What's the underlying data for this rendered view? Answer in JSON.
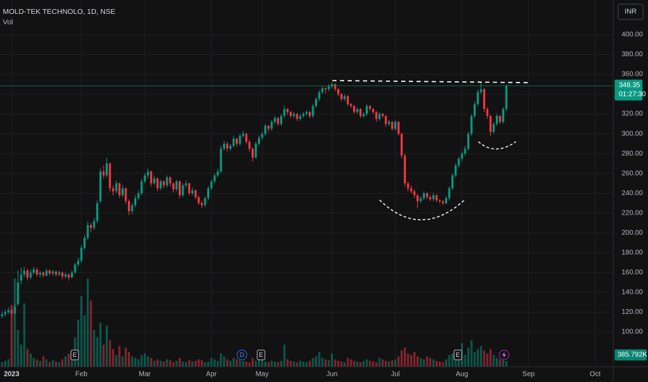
{
  "chart_data": {
    "type": "candlestick",
    "title": "MOLD-TEK TECHNOLO, 1D, NSE",
    "subtitle": "Vol",
    "currency": "INR",
    "countdown": "01:27:30",
    "events": [
      "E",
      "D",
      "E",
      "E"
    ],
    "up_color": "#089981",
    "down_color": "#f23645",
    "ylim": [
      65,
      435
    ],
    "yticks": [
      {
        "value": 100,
        "label": "100.00"
      },
      {
        "value": 120,
        "label": "120.00"
      },
      {
        "value": 140,
        "label": "140.00"
      },
      {
        "value": 160,
        "label": "160.00"
      },
      {
        "value": 180,
        "label": "180.00"
      },
      {
        "value": 200,
        "label": "200.00"
      },
      {
        "value": 220,
        "label": "220.00"
      },
      {
        "value": 240,
        "label": "240.00"
      },
      {
        "value": 260,
        "label": "260.00"
      },
      {
        "value": 280,
        "label": "280.00"
      },
      {
        "value": 300,
        "label": "300.00"
      },
      {
        "value": 320,
        "label": "320.00"
      },
      {
        "value": 340,
        "label": "340.00"
      },
      {
        "value": 360,
        "label": "360.00"
      },
      {
        "value": 380,
        "label": "380.00"
      },
      {
        "value": 400,
        "label": "400.00"
      }
    ],
    "xlim": [
      -0.66,
      192.7
    ],
    "xticks": [
      {
        "value": 3,
        "label": "2023"
      },
      {
        "value": 25,
        "label": "Feb"
      },
      {
        "value": 45,
        "label": "Mar"
      },
      {
        "value": 66,
        "label": "Apr"
      },
      {
        "value": 82,
        "label": "May"
      },
      {
        "value": 104,
        "label": "Jun"
      },
      {
        "value": 124,
        "label": "Jul"
      },
      {
        "value": 145,
        "label": "Aug"
      },
      {
        "value": 166,
        "label": "Sep"
      },
      {
        "value": 187,
        "label": "Oct"
      }
    ],
    "vlim": [
      0,
      8500000
    ],
    "grid": true,
    "volume_last_label": "385.792K",
    "ohlc": [
      [
        116,
        121,
        114,
        118
      ],
      [
        118,
        123,
        116,
        120
      ],
      [
        120,
        125,
        118,
        122
      ],
      [
        122,
        124,
        117,
        119
      ],
      [
        119,
        128,
        118,
        125
      ],
      [
        128,
        162,
        126,
        150
      ],
      [
        152,
        165,
        148,
        158
      ],
      [
        158,
        166,
        155,
        162
      ],
      [
        162,
        164,
        152,
        155
      ],
      [
        155,
        163,
        153,
        160
      ],
      [
        160,
        166,
        158,
        163
      ],
      [
        163,
        165,
        156,
        158
      ],
      [
        158,
        162,
        155,
        160
      ],
      [
        160,
        161,
        155,
        157
      ],
      [
        157,
        164,
        156,
        162
      ],
      [
        162,
        163,
        157,
        159
      ],
      [
        159,
        163,
        157,
        161
      ],
      [
        161,
        162,
        156,
        158
      ],
      [
        158,
        162,
        156,
        160
      ],
      [
        160,
        161,
        153,
        156
      ],
      [
        156,
        160,
        154,
        158
      ],
      [
        158,
        159,
        152,
        155
      ],
      [
        155,
        162,
        154,
        160
      ],
      [
        160,
        170,
        159,
        168
      ],
      [
        168,
        175,
        166,
        172
      ],
      [
        172,
        188,
        170,
        185
      ],
      [
        185,
        198,
        183,
        195
      ],
      [
        195,
        212,
        193,
        208
      ],
      [
        208,
        210,
        201,
        205
      ],
      [
        205,
        215,
        203,
        212
      ],
      [
        212,
        233,
        210,
        230
      ],
      [
        232,
        265,
        230,
        262
      ],
      [
        262,
        268,
        255,
        258
      ],
      [
        258,
        276,
        256,
        270
      ],
      [
        270,
        271,
        242,
        245
      ],
      [
        245,
        248,
        238,
        242
      ],
      [
        242,
        253,
        240,
        250
      ],
      [
        250,
        251,
        235,
        238
      ],
      [
        238,
        248,
        236,
        245
      ],
      [
        245,
        246,
        229,
        232
      ],
      [
        232,
        234,
        218,
        222
      ],
      [
        222,
        230,
        219,
        228
      ],
      [
        228,
        238,
        226,
        235
      ],
      [
        235,
        243,
        233,
        240
      ],
      [
        240,
        255,
        238,
        252
      ],
      [
        252,
        260,
        250,
        258
      ],
      [
        258,
        265,
        255,
        262
      ],
      [
        262,
        263,
        247,
        250
      ],
      [
        250,
        258,
        248,
        255
      ],
      [
        255,
        256,
        242,
        245
      ],
      [
        245,
        254,
        243,
        252
      ],
      [
        252,
        253,
        245,
        248
      ],
      [
        248,
        258,
        246,
        256
      ],
      [
        256,
        257,
        247,
        250
      ],
      [
        250,
        251,
        241,
        244
      ],
      [
        244,
        254,
        242,
        252
      ],
      [
        252,
        253,
        235,
        238
      ],
      [
        238,
        250,
        236,
        248
      ],
      [
        248,
        253,
        246,
        250
      ],
      [
        250,
        251,
        238,
        240
      ],
      [
        240,
        246,
        238,
        243
      ],
      [
        243,
        244,
        234,
        236
      ],
      [
        236,
        238,
        228,
        230
      ],
      [
        230,
        232,
        225,
        228
      ],
      [
        228,
        237,
        226,
        235
      ],
      [
        235,
        247,
        233,
        245
      ],
      [
        245,
        254,
        243,
        252
      ],
      [
        252,
        260,
        250,
        258
      ],
      [
        258,
        265,
        256,
        262
      ],
      [
        262,
        288,
        260,
        285
      ],
      [
        285,
        293,
        283,
        290
      ],
      [
        290,
        292,
        282,
        285
      ],
      [
        285,
        290,
        283,
        288
      ],
      [
        288,
        298,
        286,
        295
      ],
      [
        295,
        296,
        287,
        290
      ],
      [
        290,
        300,
        288,
        298
      ],
      [
        298,
        303,
        296,
        300
      ],
      [
        300,
        301,
        290,
        292
      ],
      [
        292,
        294,
        282,
        285
      ],
      [
        285,
        286,
        272,
        276
      ],
      [
        276,
        292,
        275,
        290
      ],
      [
        290,
        298,
        288,
        296
      ],
      [
        296,
        302,
        294,
        300
      ],
      [
        300,
        310,
        298,
        308
      ],
      [
        308,
        309,
        302,
        305
      ],
      [
        305,
        314,
        303,
        312
      ],
      [
        312,
        318,
        310,
        316
      ],
      [
        316,
        317,
        308,
        310
      ],
      [
        310,
        320,
        308,
        318
      ],
      [
        318,
        328,
        316,
        325
      ],
      [
        325,
        326,
        319,
        322
      ],
      [
        322,
        323,
        316,
        318
      ],
      [
        318,
        322,
        316,
        320
      ],
      [
        320,
        321,
        313,
        315
      ],
      [
        315,
        320,
        313,
        318
      ],
      [
        318,
        322,
        316,
        320
      ],
      [
        320,
        324,
        318,
        322
      ],
      [
        322,
        323,
        316,
        318
      ],
      [
        318,
        330,
        316,
        328
      ],
      [
        328,
        337,
        326,
        335
      ],
      [
        335,
        344,
        333,
        342
      ],
      [
        342,
        348,
        340,
        346
      ],
      [
        346,
        347,
        341,
        345
      ],
      [
        345,
        350,
        343,
        348
      ],
      [
        348,
        352,
        346,
        350
      ],
      [
        350,
        351,
        343,
        345
      ],
      [
        345,
        346,
        338,
        340
      ],
      [
        340,
        341,
        333,
        335
      ],
      [
        335,
        340,
        333,
        338
      ],
      [
        338,
        339,
        328,
        330
      ],
      [
        330,
        331,
        326,
        328
      ],
      [
        328,
        329,
        320,
        322
      ],
      [
        322,
        327,
        320,
        325
      ],
      [
        325,
        326,
        316,
        318
      ],
      [
        318,
        322,
        316,
        320
      ],
      [
        320,
        330,
        318,
        328
      ],
      [
        328,
        329,
        323,
        325
      ],
      [
        325,
        326,
        320,
        322
      ],
      [
        322,
        323,
        312,
        315
      ],
      [
        315,
        322,
        313,
        320
      ],
      [
        320,
        321,
        316,
        318
      ],
      [
        318,
        319,
        307,
        310
      ],
      [
        310,
        314,
        308,
        312
      ],
      [
        312,
        313,
        303,
        305
      ],
      [
        305,
        314,
        303,
        312
      ],
      [
        312,
        313,
        298,
        300
      ],
      [
        300,
        301,
        275,
        278
      ],
      [
        278,
        280,
        247,
        250
      ],
      [
        250,
        252,
        242,
        245
      ],
      [
        245,
        248,
        240,
        242
      ],
      [
        242,
        244,
        235,
        238
      ],
      [
        238,
        239,
        225,
        232
      ],
      [
        232,
        237,
        230,
        235
      ],
      [
        235,
        242,
        233,
        240
      ],
      [
        240,
        241,
        234,
        236
      ],
      [
        236,
        238,
        232,
        234
      ],
      [
        234,
        240,
        232,
        238
      ],
      [
        238,
        239,
        231,
        233
      ],
      [
        233,
        234,
        230,
        232
      ],
      [
        232,
        233,
        228,
        230
      ],
      [
        230,
        237,
        229,
        235
      ],
      [
        235,
        247,
        233,
        245
      ],
      [
        245,
        260,
        243,
        258
      ],
      [
        258,
        270,
        256,
        268
      ],
      [
        268,
        277,
        266,
        275
      ],
      [
        275,
        282,
        272,
        280
      ],
      [
        280,
        288,
        278,
        285
      ],
      [
        285,
        302,
        283,
        300
      ],
      [
        300,
        320,
        298,
        318
      ],
      [
        318,
        332,
        316,
        330
      ],
      [
        330,
        345,
        328,
        342
      ],
      [
        342,
        352,
        340,
        345
      ],
      [
        345,
        346,
        322,
        325
      ],
      [
        325,
        327,
        315,
        318
      ],
      [
        318,
        319,
        298,
        302
      ],
      [
        302,
        312,
        300,
        310
      ],
      [
        310,
        320,
        308,
        318
      ],
      [
        318,
        319,
        310,
        312
      ],
      [
        312,
        327,
        310,
        325
      ],
      [
        325,
        350,
        323,
        348.35
      ]
    ],
    "volume": [
      300000,
      400000,
      500000,
      4200000,
      6000000,
      2500000,
      1500000,
      4300000,
      1200000,
      900000,
      600000,
      500000,
      400000,
      700000,
      500000,
      300000,
      450000,
      350000,
      300000,
      500000,
      700000,
      900000,
      1000000,
      2000000,
      3200000,
      4800000,
      3500000,
      6000000,
      4500000,
      2500000,
      2000000,
      3000000,
      1500000,
      2800000,
      1800000,
      1200000,
      800000,
      1400000,
      700000,
      1300000,
      1000000,
      700000,
      600000,
      500000,
      800000,
      900000,
      700000,
      600000,
      400000,
      500000,
      400000,
      350000,
      500000,
      450000,
      300000,
      400000,
      600000,
      350000,
      300000,
      450000,
      350000,
      400000,
      500000,
      450000,
      300000,
      350000,
      600000,
      500000,
      400000,
      900000,
      700000,
      500000,
      400000,
      600000,
      500000,
      450000,
      400000,
      350000,
      300000,
      600000,
      400000,
      500000,
      450000,
      350000,
      300000,
      400000,
      350000,
      300000,
      400000,
      1500000,
      500000,
      400000,
      350000,
      300000,
      400000,
      350000,
      300000,
      400000,
      600000,
      700000,
      1000000,
      600000,
      500000,
      450000,
      900000,
      500000,
      400000,
      350000,
      300000,
      600000,
      500000,
      400000,
      350000,
      300000,
      400000,
      500000,
      400000,
      350000,
      300000,
      600000,
      500000,
      400000,
      350000,
      450000,
      500000,
      700000,
      1100000,
      1300000,
      900000,
      800000,
      1000000,
      700000,
      600000,
      500000,
      700000,
      600000,
      500000,
      400000,
      350000,
      300000,
      500000,
      800000,
      900000,
      700000,
      1100000,
      1600000,
      800000,
      1300000,
      1800000,
      1000000,
      1200000,
      1400000,
      1100000,
      900000,
      1200000,
      800000,
      600000,
      500000,
      700000,
      385792
    ]
  }
}
